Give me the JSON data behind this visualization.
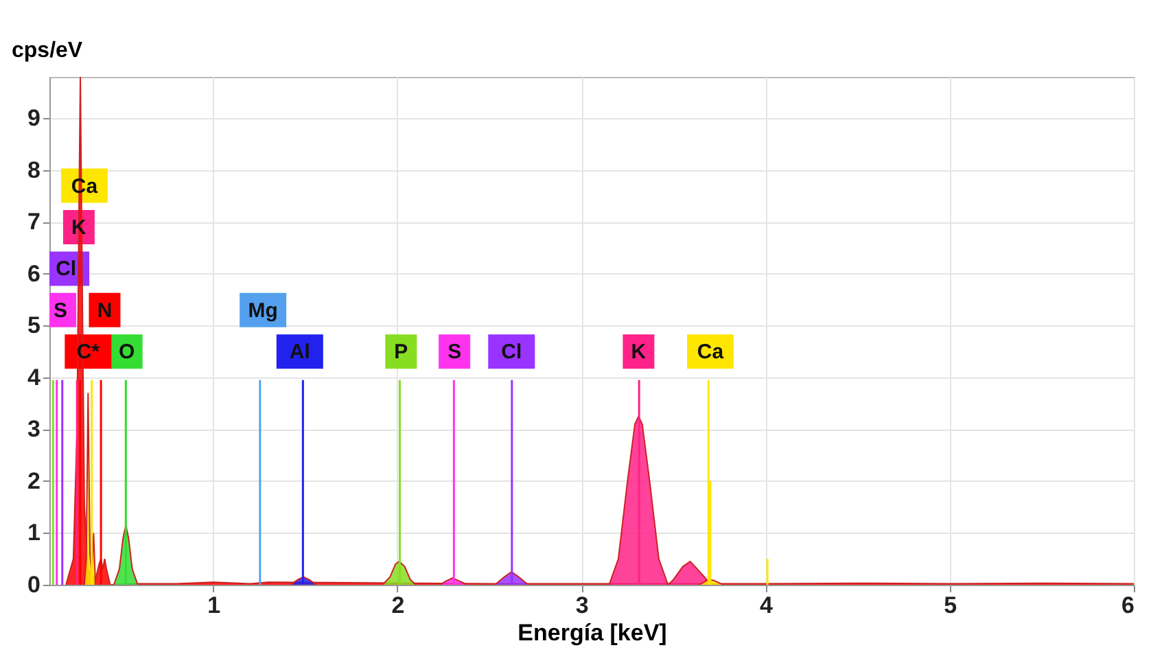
{
  "chart_data": {
    "type": "area",
    "xlabel": "Energía [keV]",
    "ylabel": "cps/eV",
    "xlim": [
      0.11,
      6.0
    ],
    "xticks": [
      1,
      2,
      3,
      4,
      5,
      6
    ],
    "ylim": [
      0,
      9.8
    ],
    "yticks": [
      0,
      1,
      2,
      3,
      4,
      5,
      6,
      7,
      8,
      9
    ],
    "grid": true,
    "series": [
      {
        "color": "#ff0000",
        "x": [
          0.2,
          0.24,
          0.26,
          0.27,
          0.278,
          0.285,
          0.3,
          0.32,
          0.36,
          0.38,
          0.39,
          0.4,
          0.41,
          0.42,
          0.44,
          0.6,
          0.8,
          1.0,
          1.2,
          1.3,
          2.5,
          3.0,
          4.0,
          4.5,
          5.0,
          5.5,
          6.0
        ],
        "values": [
          0,
          0.5,
          3,
          7,
          9.8,
          7,
          1.5,
          0.3,
          0.1,
          0.4,
          0.5,
          0.3,
          0.5,
          0.3,
          0,
          0.02,
          0.02,
          0.05,
          0.02,
          0.05,
          0.02,
          0.02,
          0.02,
          0.03,
          0.02,
          0.03,
          0.02
        ]
      },
      {
        "color": "#ffe600",
        "x": [
          0.3,
          0.31,
          0.32,
          0.33,
          0.34,
          0.35,
          0.36
        ],
        "values": [
          0,
          0.5,
          3.7,
          0.6,
          0.2,
          1.0,
          0
        ]
      },
      {
        "color": "#33dd33",
        "x": [
          0.46,
          0.49,
          0.51,
          0.525,
          0.54,
          0.56,
          0.59
        ],
        "values": [
          0,
          0.3,
          0.9,
          1.15,
          0.9,
          0.3,
          0
        ]
      },
      {
        "color": "#2222ee",
        "x": [
          1.42,
          1.46,
          1.49,
          1.52,
          1.56
        ],
        "values": [
          0,
          0.1,
          0.15,
          0.1,
          0
        ]
      },
      {
        "color": "#88dd22",
        "x": [
          1.92,
          1.96,
          1.99,
          2.01,
          2.04,
          2.07,
          2.1
        ],
        "values": [
          0,
          0.15,
          0.4,
          0.45,
          0.35,
          0.1,
          0
        ]
      },
      {
        "color": "#ff33ee",
        "x": [
          2.23,
          2.27,
          2.3,
          2.33,
          2.38
        ],
        "values": [
          0,
          0.08,
          0.13,
          0.08,
          0
        ]
      },
      {
        "color": "#9933ff",
        "x": [
          2.53,
          2.58,
          2.62,
          2.66,
          2.71
        ],
        "values": [
          0,
          0.15,
          0.25,
          0.15,
          0
        ]
      },
      {
        "color": "#ff2288",
        "x": [
          3.15,
          3.2,
          3.25,
          3.29,
          3.31,
          3.33,
          3.37,
          3.42,
          3.47,
          3.5,
          3.55,
          3.59,
          3.63,
          3.68,
          3.72
        ],
        "values": [
          0,
          0.5,
          2.0,
          3.1,
          3.25,
          3.1,
          2.0,
          0.5,
          0,
          0.1,
          0.35,
          0.45,
          0.3,
          0.1,
          0
        ]
      },
      {
        "color": "#ffe600",
        "x": [
          3.64,
          3.68,
          3.7,
          3.72,
          3.77
        ],
        "values": [
          0,
          0.08,
          0.1,
          0.08,
          0
        ]
      },
      {
        "type": "line",
        "color": "#ffe600",
        "x": [
          0.34,
          0.34
        ],
        "values": [
          0,
          3.95
        ]
      },
      {
        "type": "line",
        "color": "#ff2288",
        "x": [
          0.26,
          0.26
        ],
        "values": [
          0,
          3.95
        ]
      },
      {
        "type": "line",
        "color": "#9933ff",
        "x": [
          0.18,
          0.18
        ],
        "values": [
          0,
          3.95
        ]
      },
      {
        "type": "line",
        "color": "#ff33ee",
        "x": [
          0.15,
          0.15
        ],
        "values": [
          0,
          3.95
        ]
      },
      {
        "type": "line",
        "color": "#ff0000",
        "x": [
          0.39,
          0.39
        ],
        "values": [
          0,
          3.95
        ]
      },
      {
        "type": "line",
        "color": "#ff0000",
        "x": [
          0.277,
          0.277
        ],
        "values": [
          0,
          3.95
        ]
      },
      {
        "type": "line",
        "color": "#33dd33",
        "x": [
          0.525,
          0.525
        ],
        "values": [
          0,
          3.95
        ]
      },
      {
        "type": "line",
        "color": "#55a0ee",
        "x": [
          1.254,
          1.254
        ],
        "values": [
          0,
          3.95
        ]
      },
      {
        "type": "line",
        "color": "#2222ee",
        "x": [
          1.487,
          1.487
        ],
        "values": [
          0,
          3.95
        ]
      },
      {
        "type": "line",
        "color": "#88dd22",
        "x": [
          2.013,
          2.013
        ],
        "values": [
          0,
          3.95
        ]
      },
      {
        "type": "line",
        "color": "#ff33ee",
        "x": [
          2.307,
          2.307
        ],
        "values": [
          0,
          3.95
        ]
      },
      {
        "type": "line",
        "color": "#9933ff",
        "x": [
          2.622,
          2.622
        ],
        "values": [
          0,
          3.95
        ]
      },
      {
        "type": "line",
        "color": "#ff2288",
        "x": [
          3.313,
          3.313
        ],
        "values": [
          0,
          3.95
        ]
      },
      {
        "type": "line",
        "color": "#ffe600",
        "x": [
          3.69,
          3.69
        ],
        "values": [
          0,
          3.95
        ]
      },
      {
        "type": "line",
        "color": "#ffe600",
        "x": [
          3.7,
          3.7
        ],
        "values": [
          0,
          2.0
        ]
      },
      {
        "type": "line",
        "color": "#ffe600",
        "x": [
          4.01,
          4.01
        ],
        "values": [
          0,
          0.5
        ]
      },
      {
        "type": "line",
        "color": "#88dd22",
        "x": [
          0.13,
          0.13
        ],
        "values": [
          0,
          3.95
        ]
      }
    ],
    "annotations": [
      {
        "text": "Ca",
        "x": 0.3,
        "y": 7.7
      },
      {
        "text": "K",
        "x": 0.27,
        "y": 6.9
      },
      {
        "text": "Cl",
        "x": 0.2,
        "y": 6.1
      },
      {
        "text": "S",
        "x": 0.17,
        "y": 5.3
      },
      {
        "text": "N",
        "x": 0.41,
        "y": 5.3
      },
      {
        "text": "C*",
        "x": 0.32,
        "y": 4.5
      },
      {
        "text": "O",
        "x": 0.53,
        "y": 4.5
      },
      {
        "text": "Mg",
        "x": 1.27,
        "y": 5.3
      },
      {
        "text": "Al",
        "x": 1.47,
        "y": 4.5
      },
      {
        "text": "P",
        "x": 2.02,
        "y": 4.5
      },
      {
        "text": "S",
        "x": 2.31,
        "y": 4.5
      },
      {
        "text": "Cl",
        "x": 2.62,
        "y": 4.5
      },
      {
        "text": "K",
        "x": 3.31,
        "y": 4.5
      },
      {
        "text": "Ca",
        "x": 3.7,
        "y": 4.5
      }
    ]
  }
}
